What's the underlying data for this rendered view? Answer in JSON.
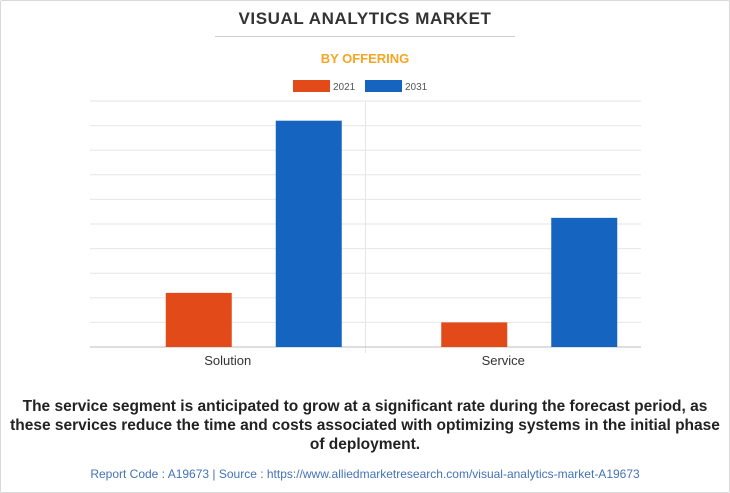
{
  "header": {
    "title": "VISUAL ANALYTICS MARKET",
    "subtitle": "BY OFFERING"
  },
  "colors": {
    "subtitle": "#f5a623",
    "series_2021": "#e24a1a",
    "series_2031": "#1565c0",
    "grid": "#e6e6e6",
    "axis": "#bdbdbd"
  },
  "chart_data": {
    "type": "bar",
    "title": "VISUAL ANALYTICS MARKET",
    "subtitle": "BY OFFERING",
    "categories": [
      "Solution",
      "Service"
    ],
    "series": [
      {
        "name": "2021",
        "values": [
          22,
          10
        ]
      },
      {
        "name": "2031",
        "values": [
          92,
          52.5
        ]
      }
    ],
    "ylim": [
      0,
      100
    ],
    "yticks_count": 10,
    "xlabel": "",
    "ylabel": "",
    "grid": true,
    "legend": "top-center"
  },
  "footer": {
    "caption": "The service segment is anticipated to grow at a significant rate during the forecast period, as these services reduce the time and costs associated with optimizing systems in the initial phase of deployment.",
    "source": "Report Code : A19673  |  Source : https://www.alliedmarketresearch.com/visual-analytics-market-A19673"
  }
}
